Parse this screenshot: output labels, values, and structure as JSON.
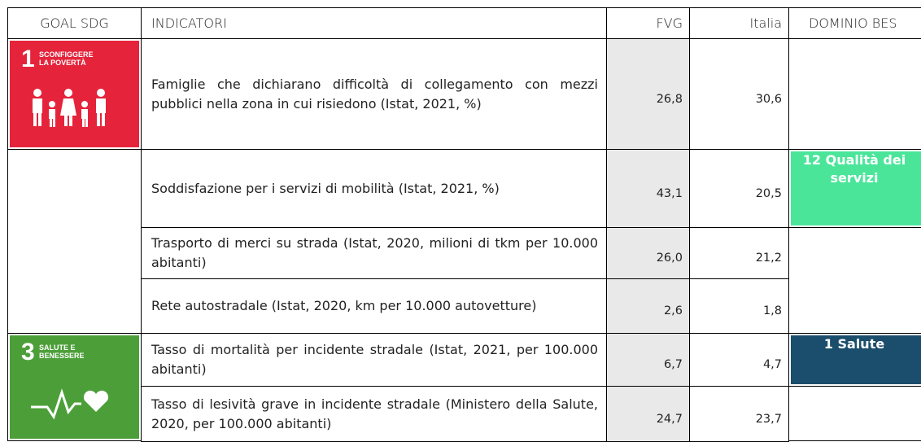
{
  "header": {
    "goal": "GOAL SDG",
    "indicator": "INDICATORI",
    "fvg": "FVG",
    "italia": "Italia",
    "dominio": "DOMINIO BES"
  },
  "goals": [
    {
      "number": "1",
      "label": "SCONFIGGERE LA POVERTÀ"
    },
    {
      "number": "3",
      "label": "SALUTE E BENESSERE"
    }
  ],
  "table": {
    "rows": [
      {
        "indicator": "Famiglie che dichiarano difficoltà di collegamento con mezzi pubblici nella zona in cui risiedono (Istat, 2021, %)",
        "fvg": "26,8",
        "italia": "30,6"
      },
      {
        "indicator": "Soddisfazione per i servizi di mobilità (Istat, 2021, %)",
        "fvg": "43,1",
        "italia": "20,5"
      },
      {
        "indicator": "Trasporto di merci su strada (Istat, 2020, milioni di tkm per 10.000 abitanti)",
        "fvg": "26,0",
        "italia": "21,2"
      },
      {
        "indicator": "Rete autostradale (Istat, 2020, km per 10.000 autovetture)",
        "fvg": "2,6",
        "italia": "1,8"
      },
      {
        "indicator": "Tasso di mortalità per incidente stradale (Istat, 2021, per 100.000 abitanti)",
        "fvg": "6,7",
        "italia": "4,7"
      },
      {
        "indicator": "Tasso di lesività grave in incidente stradale (Ministero della Salute, 2020, per 100.000 abitanti)",
        "fvg": "24,7",
        "italia": "23,7"
      }
    ]
  },
  "domini": [
    {
      "number": "12",
      "label": "Qualità dei servizi"
    },
    {
      "number": "1",
      "label": "Salute"
    }
  ]
}
